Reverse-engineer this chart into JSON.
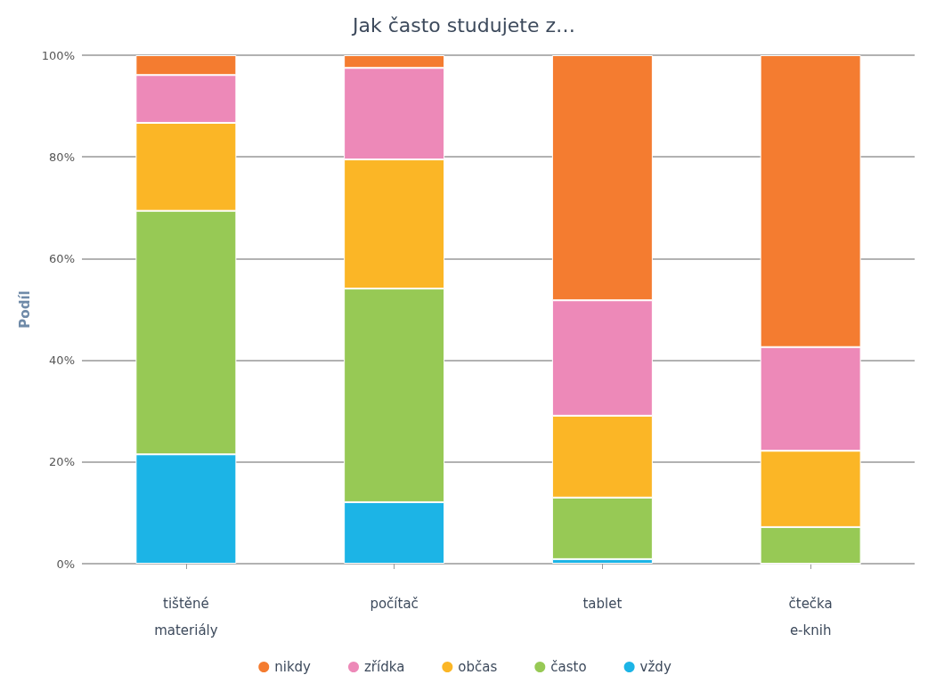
{
  "chart_data": {
    "type": "bar",
    "title": "Jak často studujete z…",
    "ylabel": "Podíl",
    "categories": [
      "tištěné\nmateriály",
      "počítač",
      "tablet",
      "čtečka\ne-knih"
    ],
    "stacked": true,
    "series": [
      {
        "name": "vždy",
        "color": "#1cb4e6",
        "values": [
          21.5,
          12.1,
          0.9,
          0
        ]
      },
      {
        "name": "často",
        "color": "#97c955",
        "values": [
          47.9,
          42.0,
          12.1,
          7.2
        ]
      },
      {
        "name": "občas",
        "color": "#fbb626",
        "values": [
          17.3,
          25.4,
          16.1,
          15.0
        ]
      },
      {
        "name": "zřídka",
        "color": "#ed89b8",
        "values": [
          9.4,
          18.0,
          22.7,
          20.4
        ]
      },
      {
        "name": "nikdy",
        "color": "#f47c30",
        "values": [
          3.9,
          2.5,
          48.2,
          57.4
        ]
      }
    ],
    "ylim": [
      0,
      100
    ],
    "yticks": [
      {
        "value": 0,
        "label": "0%"
      },
      {
        "value": 20,
        "label": "20%"
      },
      {
        "value": 40,
        "label": "40%"
      },
      {
        "value": 60,
        "label": "60%"
      },
      {
        "value": 80,
        "label": "80%"
      },
      {
        "value": 100,
        "label": "100%"
      }
    ],
    "grid": "y",
    "legend": "bottom"
  }
}
